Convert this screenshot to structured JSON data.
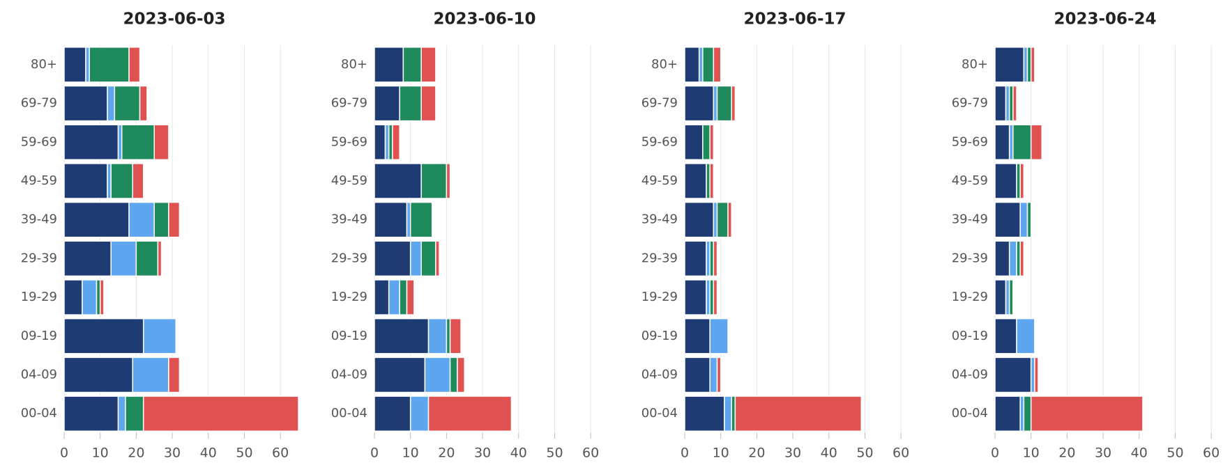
{
  "chart_data": [
    {
      "type": "bar",
      "orientation": "horizontal",
      "title": "2023-06-03",
      "categories": [
        "80+",
        "69-79",
        "59-69",
        "49-59",
        "39-49",
        "29-39",
        "19-29",
        "09-19",
        "04-09",
        "00-04"
      ],
      "series": [
        {
          "color": "#1f3b73",
          "values": [
            6,
            12,
            15,
            12,
            18,
            13,
            5,
            22,
            19,
            15
          ]
        },
        {
          "color": "#5ea6ef",
          "values": [
            1,
            2,
            1,
            1,
            7,
            7,
            4,
            9,
            10,
            2
          ]
        },
        {
          "color": "#1f8a5b",
          "values": [
            11,
            7,
            9,
            6,
            4,
            6,
            1,
            0,
            0,
            5
          ]
        },
        {
          "color": "#e05252",
          "values": [
            3,
            2,
            4,
            3,
            3,
            1,
            1,
            0,
            3,
            43
          ]
        }
      ],
      "xlim": [
        0,
        65
      ],
      "xticks": [
        0,
        10,
        20,
        30,
        40,
        50,
        60
      ],
      "grid": true
    },
    {
      "type": "bar",
      "orientation": "horizontal",
      "title": "2023-06-10",
      "categories": [
        "80+",
        "69-79",
        "59-69",
        "49-59",
        "39-49",
        "29-39",
        "19-29",
        "09-19",
        "04-09",
        "00-04"
      ],
      "series": [
        {
          "color": "#1f3b73",
          "values": [
            8,
            7,
            3,
            13,
            9,
            10,
            4,
            15,
            14,
            10
          ]
        },
        {
          "color": "#5ea6ef",
          "values": [
            0,
            0,
            1,
            0,
            1,
            3,
            3,
            5,
            7,
            5
          ]
        },
        {
          "color": "#1f8a5b",
          "values": [
            5,
            6,
            1,
            7,
            6,
            4,
            2,
            1,
            2,
            0
          ]
        },
        {
          "color": "#e05252",
          "values": [
            4,
            4,
            2,
            1,
            0,
            1,
            2,
            3,
            2,
            23
          ]
        }
      ],
      "xlim": [
        0,
        65
      ],
      "xticks": [
        0,
        10,
        20,
        30,
        40,
        50,
        60
      ],
      "grid": true
    },
    {
      "type": "bar",
      "orientation": "horizontal",
      "title": "2023-06-17",
      "categories": [
        "80+",
        "69-79",
        "59-69",
        "49-59",
        "39-49",
        "29-39",
        "19-29",
        "09-19",
        "04-09",
        "00-04"
      ],
      "series": [
        {
          "color": "#1f3b73",
          "values": [
            4,
            8,
            5,
            6,
            8,
            6,
            6,
            7,
            7,
            11
          ]
        },
        {
          "color": "#5ea6ef",
          "values": [
            1,
            1,
            0,
            0,
            1,
            1,
            1,
            5,
            2,
            2
          ]
        },
        {
          "color": "#1f8a5b",
          "values": [
            3,
            4,
            2,
            1,
            3,
            1,
            1,
            0,
            0,
            1
          ]
        },
        {
          "color": "#e05252",
          "values": [
            2,
            1,
            1,
            1,
            1,
            1,
            1,
            0,
            1,
            35
          ]
        }
      ],
      "xlim": [
        0,
        65
      ],
      "xticks": [
        0,
        10,
        20,
        30,
        40,
        50,
        60
      ],
      "grid": true
    },
    {
      "type": "bar",
      "orientation": "horizontal",
      "title": "2023-06-24",
      "categories": [
        "80+",
        "69-79",
        "59-69",
        "49-59",
        "39-49",
        "29-39",
        "19-29",
        "09-19",
        "04-09",
        "00-04"
      ],
      "series": [
        {
          "color": "#1f3b73",
          "values": [
            8,
            3,
            4,
            6,
            7,
            4,
            3,
            6,
            10,
            7
          ]
        },
        {
          "color": "#5ea6ef",
          "values": [
            1,
            1,
            1,
            0,
            2,
            2,
            1,
            5,
            1,
            1
          ]
        },
        {
          "color": "#1f8a5b",
          "values": [
            1,
            1,
            5,
            1,
            1,
            1,
            1,
            0,
            0,
            2
          ]
        },
        {
          "color": "#e05252",
          "values": [
            1,
            1,
            3,
            1,
            0,
            1,
            0,
            0,
            1,
            31
          ]
        }
      ],
      "xlim": [
        0,
        65
      ],
      "xticks": [
        0,
        10,
        20,
        30,
        40,
        50,
        60
      ],
      "grid": true
    }
  ]
}
